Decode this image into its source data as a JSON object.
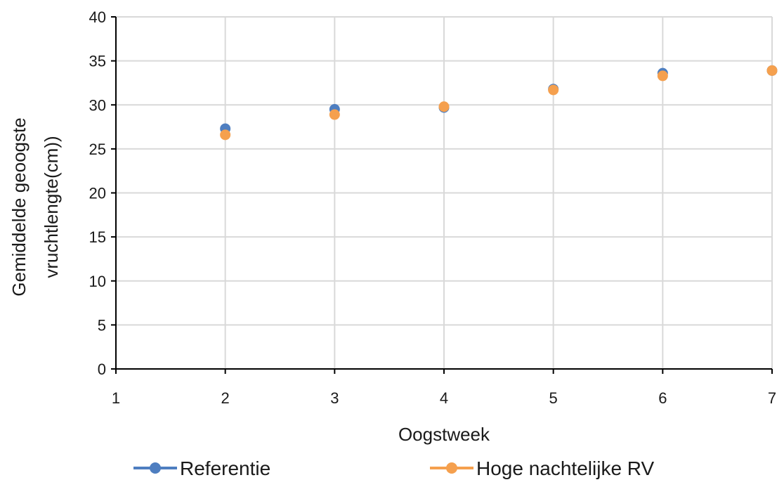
{
  "chart_data": {
    "type": "scatter",
    "title": "",
    "xlabel": "Oogstweek",
    "ylabel_lines": [
      "Gemiddelde geoogste",
      "vruchtlengte(cm))"
    ],
    "xlim": [
      1,
      7
    ],
    "ylim": [
      0,
      40
    ],
    "xticks": [
      1,
      2,
      3,
      4,
      5,
      6,
      7
    ],
    "yticks": [
      0,
      5,
      10,
      15,
      20,
      25,
      30,
      35,
      40
    ],
    "grid": true,
    "legend_position": "bottom",
    "series": [
      {
        "name": "Referentie",
        "color": "#4E7EC0",
        "x": [
          2,
          3,
          4,
          5,
          6,
          7
        ],
        "y": [
          27.3,
          29.5,
          29.7,
          31.8,
          33.6,
          33.9
        ]
      },
      {
        "name": "Hoge nachtelijke RV",
        "color": "#F5A04E",
        "x": [
          2,
          3,
          4,
          5,
          6,
          7
        ],
        "y": [
          26.6,
          28.9,
          29.8,
          31.7,
          33.3,
          33.9
        ]
      }
    ]
  }
}
